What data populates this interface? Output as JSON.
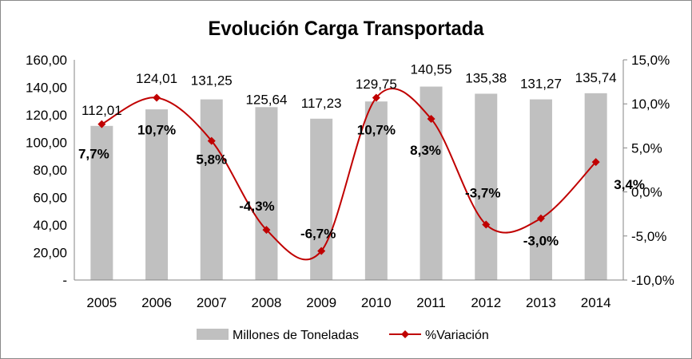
{
  "chart_data": {
    "type": "bar+line",
    "title": "Evolución Carga Transportada",
    "categories": [
      "2005",
      "2006",
      "2007",
      "2008",
      "2009",
      "2010",
      "2011",
      "2012",
      "2013",
      "2014"
    ],
    "series": [
      {
        "name": "Millones de Toneladas",
        "type": "bar",
        "axis": "left",
        "color": "#c0c0c0",
        "values": [
          112.01,
          124.01,
          131.25,
          125.64,
          117.23,
          129.75,
          140.55,
          135.38,
          131.27,
          135.74
        ],
        "labels": [
          "112,01",
          "124,01",
          "131,25",
          "125,64",
          "117,23",
          "129,75",
          "140,55",
          "135,38",
          "131,27",
          "135,74"
        ]
      },
      {
        "name": "%Variación",
        "type": "line",
        "axis": "right",
        "color": "#c00000",
        "smooth": true,
        "marker": "diamond",
        "values": [
          7.7,
          10.7,
          5.8,
          -4.3,
          -6.7,
          10.7,
          8.3,
          -3.7,
          -3.0,
          3.4
        ],
        "labels": [
          "7,7%",
          "10,7%",
          "5,8%",
          "-4,3%",
          "-6,7%",
          "10,7%",
          "8,3%",
          "-3,7%",
          "-3,0%",
          "3,4%"
        ]
      }
    ],
    "left_axis": {
      "ylim": [
        0,
        160
      ],
      "ticks": [
        "-",
        "20,00",
        "40,00",
        "60,00",
        "80,00",
        "100,00",
        "120,00",
        "140,00",
        "160,00"
      ]
    },
    "right_axis": {
      "ylim": [
        -10,
        15
      ],
      "ticks": [
        "-10,0%",
        "-5,0%",
        "0,0%",
        "5,0%",
        "10,0%",
        "15,0%"
      ]
    },
    "grid": false,
    "legend_position": "bottom"
  }
}
